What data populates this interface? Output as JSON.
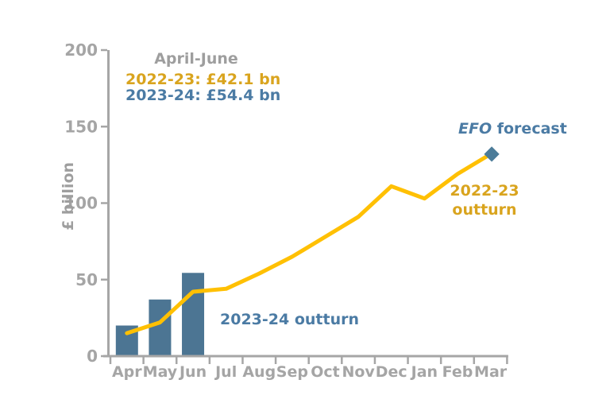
{
  "chart_data": {
    "type": "combo-bar-line",
    "title": "",
    "ylabel": "£ billion",
    "xlabel": "",
    "ylim": [
      0,
      200
    ],
    "yticks": [
      0,
      50,
      100,
      150,
      200
    ],
    "grid": false,
    "legend_position": "direct-labels",
    "categories": [
      "Apr",
      "May",
      "Jun",
      "Jul",
      "Aug",
      "Sep",
      "Oct",
      "Nov",
      "Dec",
      "Jan",
      "Feb",
      "Mar"
    ],
    "series": [
      {
        "name": "2023-24 outturn",
        "type": "bar",
        "color": "#4C7593",
        "values": [
          20,
          37,
          54.4,
          null,
          null,
          null,
          null,
          null,
          null,
          null,
          null,
          null
        ]
      },
      {
        "name": "2022-23 outturn",
        "type": "line",
        "color": "#FFC003",
        "values": [
          15,
          22,
          42.1,
          44,
          54,
          65,
          78,
          91,
          111,
          103,
          119,
          132
        ]
      },
      {
        "name": "EFO forecast",
        "type": "scatter",
        "marker": "diamond",
        "color": "#4C7C99",
        "values": [
          null,
          null,
          null,
          null,
          null,
          null,
          null,
          null,
          null,
          null,
          null,
          132
        ]
      }
    ],
    "annotations": {
      "heading": "April-June",
      "line_2022_23": "2022-23: £42.1 bn",
      "line_2023_24": "2023-24: £54.4 bn",
      "bar_series_label": "2023-24 outturn",
      "line_series_label_top": "2022-23",
      "line_series_label_bottom": "outturn",
      "efo_italic": "EFO",
      "efo_rest": " forecast"
    },
    "colors": {
      "axis": "#A6A6A6",
      "tick_label": "#A5A5A5",
      "gold_line": "#FFC003",
      "gold_text": "#D9A41E",
      "blue_bar": "#4C7593",
      "blue_text": "#4B7BA4",
      "diamond": "#4C7C99",
      "gray_text": "#9E9E9E"
    }
  }
}
